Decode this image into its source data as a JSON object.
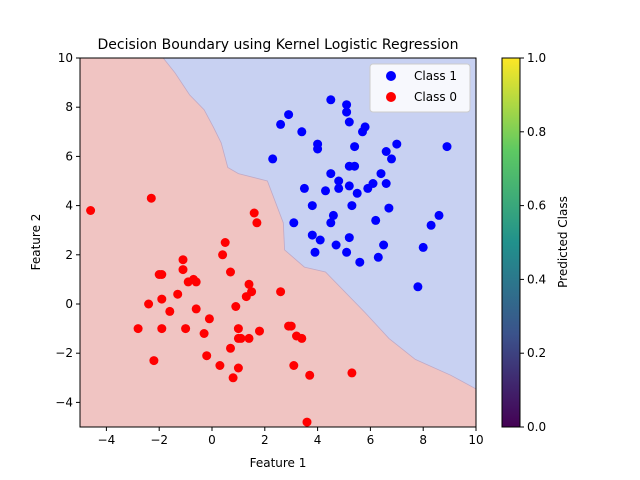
{
  "chart_data": {
    "type": "scatter",
    "title": "Decision Boundary using Kernel Logistic Regression",
    "xlabel": "Feature 1",
    "ylabel": "Feature 2",
    "xlim": [
      -5,
      10
    ],
    "ylim": [
      -5,
      10
    ],
    "xticks": [
      -4,
      -2,
      0,
      2,
      4,
      6,
      8,
      10
    ],
    "yticks": [
      -4,
      -2,
      0,
      2,
      4,
      6,
      8,
      10
    ],
    "legend_position": "top-right",
    "region_colors": {
      "class_0": "#f0c4c2",
      "class_1": "#c8d1f2"
    },
    "decision_boundary": [
      [
        -1.85,
        10
      ],
      [
        -1.4,
        9.4
      ],
      [
        -0.85,
        8.5
      ],
      [
        -0.3,
        7.9
      ],
      [
        0.05,
        7.2
      ],
      [
        0.35,
        6.55
      ],
      [
        0.6,
        5.55
      ],
      [
        1.0,
        5.3
      ],
      [
        2.1,
        5.0
      ],
      [
        2.7,
        3.3
      ],
      [
        2.75,
        2.2
      ],
      [
        3.5,
        1.5
      ],
      [
        4.3,
        1.3
      ],
      [
        5.8,
        -0.35
      ],
      [
        6.7,
        -1.4
      ],
      [
        7.7,
        -2.25
      ],
      [
        9.05,
        -2.9
      ],
      [
        10,
        -3.45
      ]
    ],
    "series": [
      {
        "name": "Class 1",
        "color": "#0000ff",
        "points": [
          [
            4.5,
            8.3
          ],
          [
            5.1,
            8.1
          ],
          [
            5.1,
            7.8
          ],
          [
            2.9,
            7.7
          ],
          [
            5.2,
            7.4
          ],
          [
            2.6,
            7.3
          ],
          [
            5.8,
            7.2
          ],
          [
            5.7,
            7.0
          ],
          [
            3.4,
            7.0
          ],
          [
            4.0,
            6.5
          ],
          [
            7.0,
            6.5
          ],
          [
            5.4,
            6.4
          ],
          [
            8.9,
            6.4
          ],
          [
            4.0,
            6.3
          ],
          [
            6.6,
            6.2
          ],
          [
            2.3,
            5.9
          ],
          [
            6.8,
            5.9
          ],
          [
            5.2,
            5.6
          ],
          [
            5.4,
            5.6
          ],
          [
            4.5,
            5.3
          ],
          [
            6.4,
            5.3
          ],
          [
            4.8,
            5.0
          ],
          [
            6.1,
            4.9
          ],
          [
            6.6,
            4.9
          ],
          [
            4.8,
            4.7
          ],
          [
            5.2,
            4.8
          ],
          [
            5.9,
            4.7
          ],
          [
            3.5,
            4.7
          ],
          [
            4.3,
            4.6
          ],
          [
            5.5,
            4.5
          ],
          [
            3.8,
            4.0
          ],
          [
            5.3,
            4.0
          ],
          [
            6.7,
            3.9
          ],
          [
            8.6,
            3.6
          ],
          [
            4.6,
            3.6
          ],
          [
            4.5,
            3.3
          ],
          [
            6.2,
            3.4
          ],
          [
            8.3,
            3.2
          ],
          [
            3.1,
            3.3
          ],
          [
            3.8,
            2.8
          ],
          [
            4.1,
            2.6
          ],
          [
            5.2,
            2.7
          ],
          [
            4.7,
            2.4
          ],
          [
            6.5,
            2.4
          ],
          [
            8.0,
            2.3
          ],
          [
            3.9,
            2.1
          ],
          [
            5.1,
            2.1
          ],
          [
            6.3,
            1.9
          ],
          [
            5.6,
            1.7
          ],
          [
            7.8,
            0.7
          ]
        ]
      },
      {
        "name": "Class 0",
        "color": "#ff0000",
        "points": [
          [
            -4.6,
            3.8
          ],
          [
            -2.3,
            4.3
          ],
          [
            1.6,
            3.7
          ],
          [
            1.7,
            3.3
          ],
          [
            0.5,
            2.5
          ],
          [
            0.4,
            2.0
          ],
          [
            -1.1,
            1.8
          ],
          [
            -2.0,
            1.2
          ],
          [
            -1.9,
            1.2
          ],
          [
            -1.1,
            1.4
          ],
          [
            0.7,
            1.3
          ],
          [
            -0.7,
            1.0
          ],
          [
            -0.9,
            0.9
          ],
          [
            -0.6,
            0.9
          ],
          [
            -1.3,
            0.4
          ],
          [
            1.4,
            0.8
          ],
          [
            1.5,
            0.5
          ],
          [
            2.6,
            0.5
          ],
          [
            1.3,
            0.3
          ],
          [
            -1.9,
            0.2
          ],
          [
            -2.4,
            0.0
          ],
          [
            -0.6,
            -0.2
          ],
          [
            -1.6,
            -0.3
          ],
          [
            0.9,
            -0.1
          ],
          [
            -0.1,
            -0.6
          ],
          [
            -2.8,
            -1.0
          ],
          [
            -1.9,
            -1.0
          ],
          [
            -1.0,
            -1.0
          ],
          [
            2.9,
            -0.9
          ],
          [
            3.0,
            -0.9
          ],
          [
            1.0,
            -1.0
          ],
          [
            -0.3,
            -1.2
          ],
          [
            3.2,
            -1.3
          ],
          [
            3.4,
            -1.4
          ],
          [
            1.0,
            -1.4
          ],
          [
            1.1,
            -1.4
          ],
          [
            1.4,
            -1.4
          ],
          [
            1.8,
            -1.1
          ],
          [
            0.7,
            -1.8
          ],
          [
            -0.2,
            -2.1
          ],
          [
            -2.2,
            -2.3
          ],
          [
            0.3,
            -2.5
          ],
          [
            1.0,
            -2.6
          ],
          [
            3.1,
            -2.5
          ],
          [
            3.7,
            -2.9
          ],
          [
            0.8,
            -3.0
          ],
          [
            5.3,
            -2.8
          ],
          [
            3.6,
            -4.8
          ]
        ]
      }
    ]
  },
  "colorbar": {
    "label": "Predicted Class",
    "min": 0.0,
    "max": 1.0,
    "ticks": [
      "0.0",
      "0.2",
      "0.4",
      "0.6",
      "0.8",
      "1.0"
    ],
    "gradient": [
      "#440154",
      "#3b528b",
      "#21918c",
      "#5ec962",
      "#fde725"
    ]
  }
}
